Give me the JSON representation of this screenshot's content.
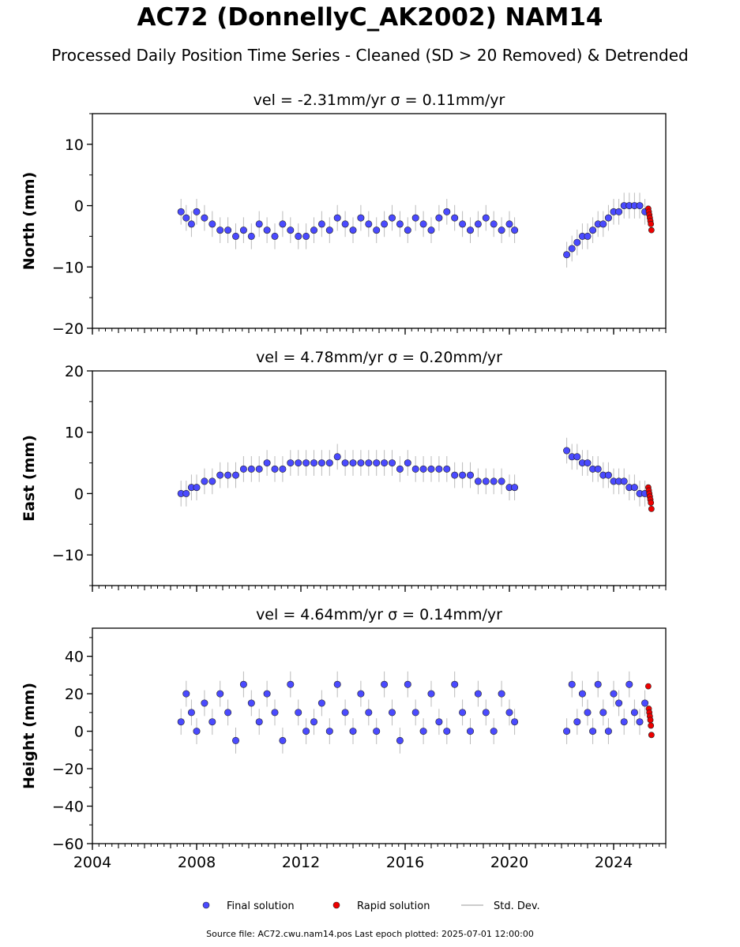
{
  "title": "AC72 (DonnellyC_AK2002) NAM14",
  "subtitle": "Processed Daily Position Time Series - Cleaned (SD > 20 Removed) & Detrended",
  "footer": "Source file: AC72.cwu.nam14.pos  Last epoch plotted: 2025-07-01 12:00:00",
  "colors": {
    "final": "#4a4aff",
    "rapid": "#ee0000",
    "stddev": "#bbbbbb"
  },
  "legend": [
    {
      "key": "final",
      "label": "Final solution"
    },
    {
      "key": "rapid",
      "label": "Rapid solution"
    },
    {
      "key": "stddev",
      "label": "Std. Dev."
    }
  ],
  "chart_data": [
    {
      "type": "scatter",
      "title": "vel = -2.31mm/yr   σ = 0.11mm/yr",
      "ylabel": "North (mm)",
      "xlim": [
        2004,
        2026
      ],
      "ylim": [
        -20,
        15
      ],
      "yticks": [
        -20,
        -10,
        0,
        10
      ],
      "xticks": [
        2004,
        2008,
        2012,
        2016,
        2020,
        2024
      ],
      "series": [
        {
          "name": "Final solution",
          "x": [
            2007.4,
            2007.6,
            2007.8,
            2008.0,
            2008.3,
            2008.6,
            2008.9,
            2009.2,
            2009.5,
            2009.8,
            2010.1,
            2010.4,
            2010.7,
            2011.0,
            2011.3,
            2011.6,
            2011.9,
            2012.2,
            2012.5,
            2012.8,
            2013.1,
            2013.4,
            2013.7,
            2014.0,
            2014.3,
            2014.6,
            2014.9,
            2015.2,
            2015.5,
            2015.8,
            2016.1,
            2016.4,
            2016.7,
            2017.0,
            2017.3,
            2017.6,
            2017.9,
            2018.2,
            2018.5,
            2018.8,
            2019.1,
            2019.4,
            2019.7,
            2020.0,
            2020.2,
            2022.2,
            2022.4,
            2022.6,
            2022.8,
            2023.0,
            2023.2,
            2023.4,
            2023.6,
            2023.8,
            2024.0,
            2024.2,
            2024.4,
            2024.6,
            2024.8,
            2025.0,
            2025.2
          ],
          "y": [
            -1,
            -2,
            -3,
            -1,
            -2,
            -3,
            -4,
            -4,
            -5,
            -4,
            -5,
            -3,
            -4,
            -5,
            -3,
            -4,
            -5,
            -5,
            -4,
            -3,
            -4,
            -2,
            -3,
            -4,
            -2,
            -3,
            -4,
            -3,
            -2,
            -3,
            -4,
            -2,
            -3,
            -4,
            -2,
            -1,
            -2,
            -3,
            -4,
            -3,
            -2,
            -3,
            -4,
            -3,
            -4,
            -8,
            -7,
            -6,
            -5,
            -5,
            -4,
            -3,
            -3,
            -2,
            -1,
            -1,
            0,
            0,
            0,
            0,
            -1
          ]
        },
        {
          "name": "Rapid solution",
          "x": [
            2025.33,
            2025.35,
            2025.37,
            2025.39,
            2025.41,
            2025.43,
            2025.45
          ],
          "y": [
            -0.5,
            -1,
            -1.5,
            -2,
            -2.5,
            -3,
            -4
          ]
        }
      ]
    },
    {
      "type": "scatter",
      "title": "vel = 4.78mm/yr   σ = 0.20mm/yr",
      "ylabel": "East (mm)",
      "xlim": [
        2004,
        2026
      ],
      "ylim": [
        -15,
        20
      ],
      "yticks": [
        -10,
        0,
        10,
        20
      ],
      "xticks": [
        2004,
        2008,
        2012,
        2016,
        2020,
        2024
      ],
      "series": [
        {
          "name": "Final solution",
          "x": [
            2007.4,
            2007.6,
            2007.8,
            2008.0,
            2008.3,
            2008.6,
            2008.9,
            2009.2,
            2009.5,
            2009.8,
            2010.1,
            2010.4,
            2010.7,
            2011.0,
            2011.3,
            2011.6,
            2011.9,
            2012.2,
            2012.5,
            2012.8,
            2013.1,
            2013.4,
            2013.7,
            2014.0,
            2014.3,
            2014.6,
            2014.9,
            2015.2,
            2015.5,
            2015.8,
            2016.1,
            2016.4,
            2016.7,
            2017.0,
            2017.3,
            2017.6,
            2017.9,
            2018.2,
            2018.5,
            2018.8,
            2019.1,
            2019.4,
            2019.7,
            2020.0,
            2020.2,
            2022.2,
            2022.4,
            2022.6,
            2022.8,
            2023.0,
            2023.2,
            2023.4,
            2023.6,
            2023.8,
            2024.0,
            2024.2,
            2024.4,
            2024.6,
            2024.8,
            2025.0,
            2025.2
          ],
          "y": [
            0,
            0,
            1,
            1,
            2,
            2,
            3,
            3,
            3,
            4,
            4,
            4,
            5,
            4,
            4,
            5,
            5,
            5,
            5,
            5,
            5,
            6,
            5,
            5,
            5,
            5,
            5,
            5,
            5,
            4,
            5,
            4,
            4,
            4,
            4,
            4,
            3,
            3,
            3,
            2,
            2,
            2,
            2,
            1,
            1,
            7,
            6,
            6,
            5,
            5,
            4,
            4,
            3,
            3,
            2,
            2,
            2,
            1,
            1,
            0,
            0
          ]
        },
        {
          "name": "Rapid solution",
          "x": [
            2025.33,
            2025.35,
            2025.37,
            2025.39,
            2025.41,
            2025.43,
            2025.45
          ],
          "y": [
            1,
            0.5,
            0,
            -0.5,
            -1,
            -1.5,
            -2.5
          ]
        }
      ]
    },
    {
      "type": "scatter",
      "title": "vel = 4.64mm/yr   σ = 0.14mm/yr",
      "ylabel": "Height (mm)",
      "xlim": [
        2004,
        2026
      ],
      "ylim": [
        -60,
        55
      ],
      "yticks": [
        -60,
        -40,
        -20,
        0,
        20,
        40
      ],
      "xticks": [
        2004,
        2008,
        2012,
        2016,
        2020,
        2024
      ],
      "series": [
        {
          "name": "Final solution",
          "x": [
            2007.4,
            2007.6,
            2007.8,
            2008.0,
            2008.3,
            2008.6,
            2008.9,
            2009.2,
            2009.5,
            2009.8,
            2010.1,
            2010.4,
            2010.7,
            2011.0,
            2011.3,
            2011.6,
            2011.9,
            2012.2,
            2012.5,
            2012.8,
            2013.1,
            2013.4,
            2013.7,
            2014.0,
            2014.3,
            2014.6,
            2014.9,
            2015.2,
            2015.5,
            2015.8,
            2016.1,
            2016.4,
            2016.7,
            2017.0,
            2017.3,
            2017.6,
            2017.9,
            2018.2,
            2018.5,
            2018.8,
            2019.1,
            2019.4,
            2019.7,
            2020.0,
            2020.2,
            2022.2,
            2022.4,
            2022.6,
            2022.8,
            2023.0,
            2023.2,
            2023.4,
            2023.6,
            2023.8,
            2024.0,
            2024.2,
            2024.4,
            2024.6,
            2024.8,
            2025.0,
            2025.2
          ],
          "y": [
            5,
            20,
            10,
            0,
            15,
            5,
            20,
            10,
            -5,
            25,
            15,
            5,
            20,
            10,
            -5,
            25,
            10,
            0,
            5,
            15,
            0,
            25,
            10,
            0,
            20,
            10,
            0,
            25,
            10,
            -5,
            25,
            10,
            0,
            20,
            5,
            0,
            25,
            10,
            0,
            20,
            10,
            0,
            20,
            10,
            5,
            0,
            25,
            5,
            20,
            10,
            0,
            25,
            10,
            0,
            20,
            15,
            5,
            25,
            10,
            5,
            15
          ]
        },
        {
          "name": "Rapid solution",
          "x": [
            2025.33,
            2025.35,
            2025.37,
            2025.39,
            2025.41,
            2025.43,
            2025.45
          ],
          "y": [
            24,
            12,
            10,
            8,
            6,
            3,
            -2
          ]
        }
      ]
    }
  ]
}
